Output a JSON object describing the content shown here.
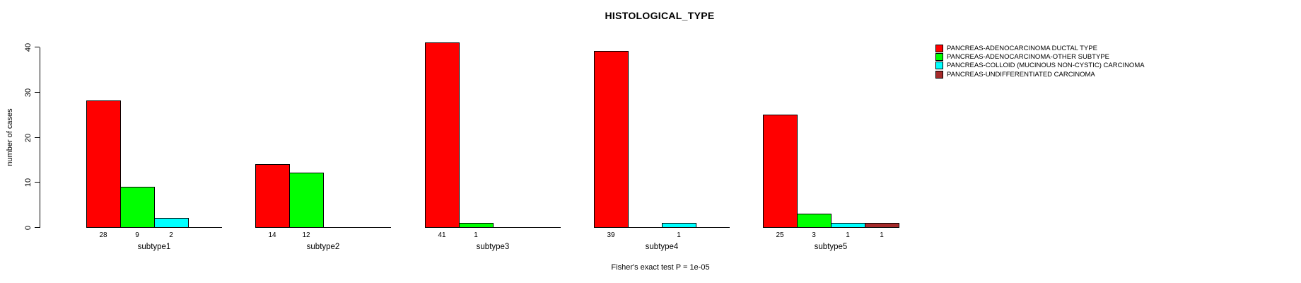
{
  "chart_data": {
    "type": "bar",
    "title": "HISTOLOGICAL_TYPE",
    "ylabel": "number of cases",
    "footer": "Fisher's exact test P = 1e-05",
    "categories": [
      "subtype1",
      "subtype2",
      "subtype3",
      "subtype4",
      "subtype5"
    ],
    "series": [
      {
        "name": "PANCREAS-ADENOCARCINOMA DUCTAL TYPE",
        "color": "#ff0000",
        "values": [
          28,
          14,
          41,
          39,
          25
        ]
      },
      {
        "name": "PANCREAS-ADENOCARCINOMA-OTHER SUBTYPE",
        "color": "#00ff00",
        "values": [
          9,
          12,
          1,
          0,
          3
        ]
      },
      {
        "name": "PANCREAS-COLLOID (MUCINOUS NON-CYSTIC) CARCINOMA",
        "color": "#00ffff",
        "values": [
          2,
          0,
          0,
          1,
          1
        ]
      },
      {
        "name": "PANCREAS-UNDIFFERENTIATED CARCINOMA",
        "color": "#a52a2a",
        "values": [
          0,
          0,
          0,
          0,
          1
        ]
      }
    ],
    "ylim": [
      0,
      40
    ],
    "yticks": [
      0,
      10,
      20,
      30,
      40
    ],
    "grid": false,
    "legend_position": "right",
    "value_labels": "shown below each nonzero bar",
    "background_color": "#ffffff",
    "axis_color": "#000000"
  }
}
